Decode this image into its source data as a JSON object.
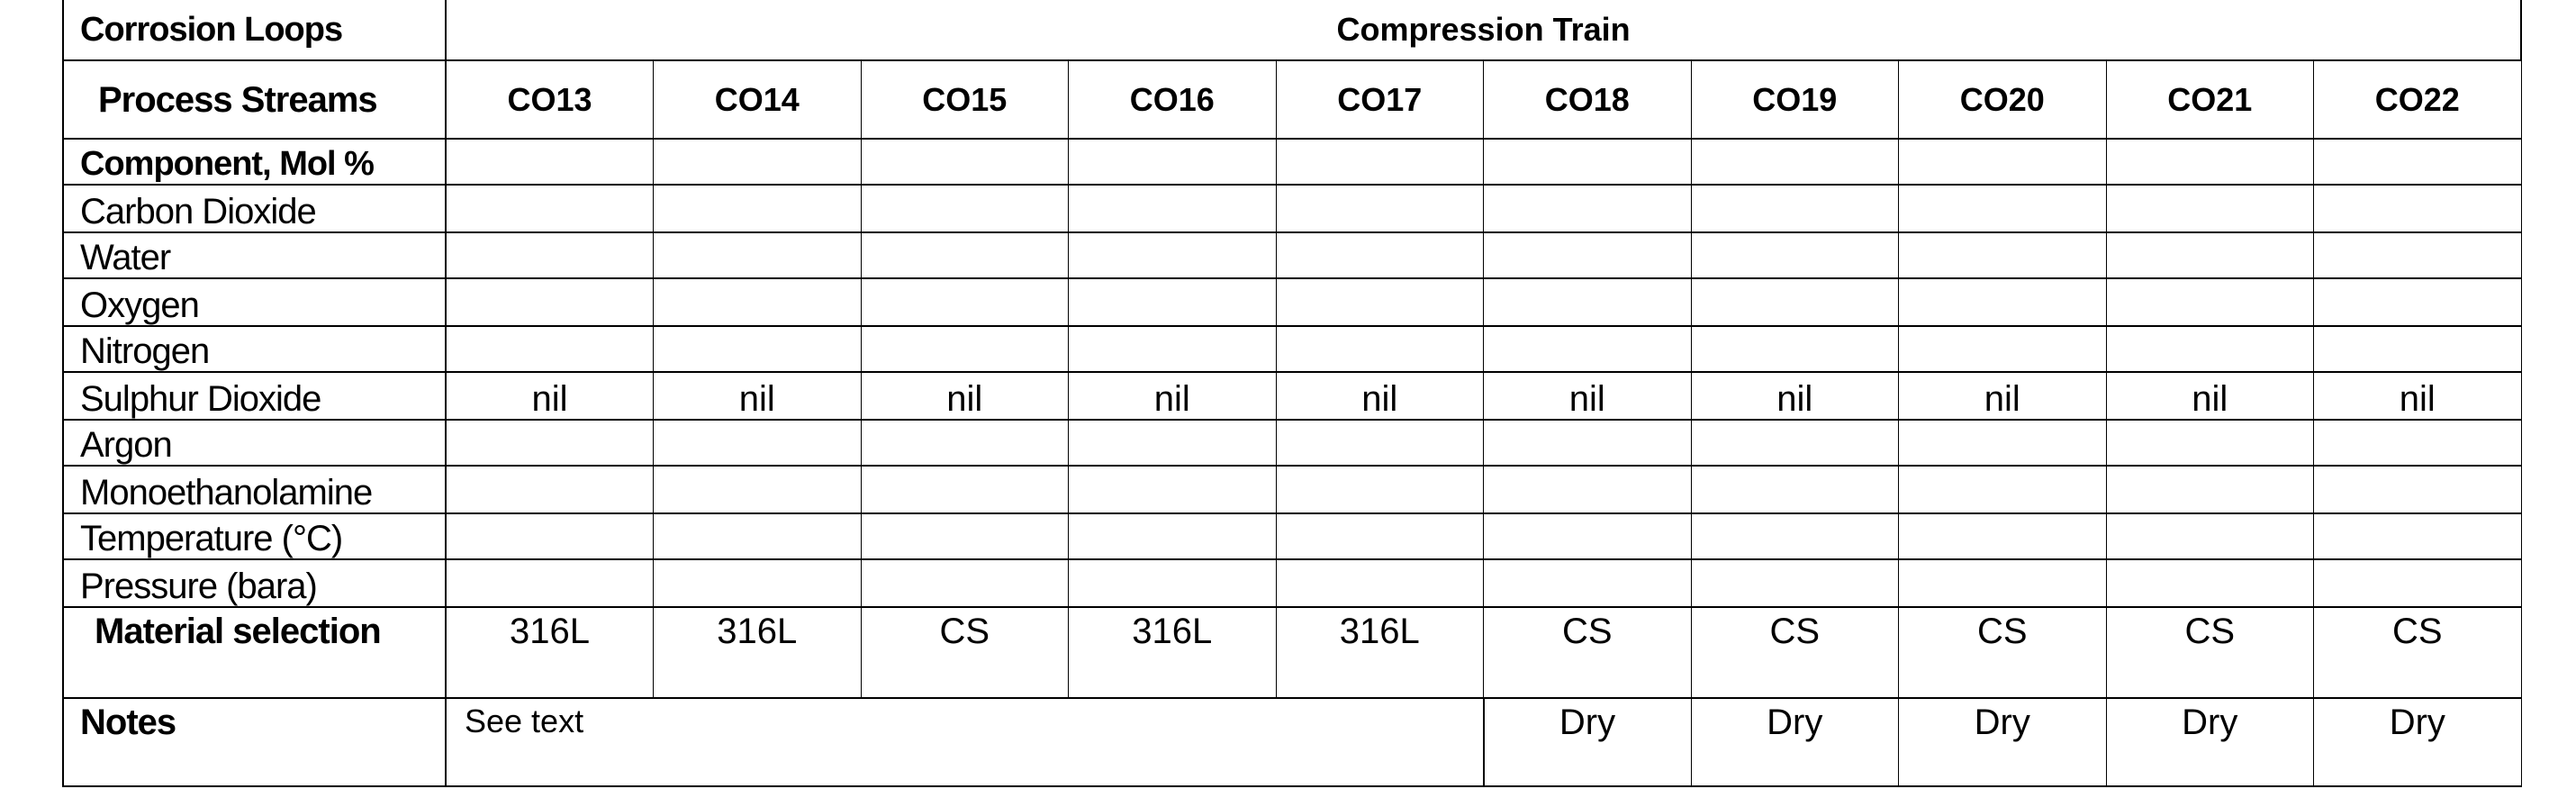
{
  "corrosion_loops_label": "Corrosion Loops",
  "group_header": "Compression Train",
  "process_streams_label": "Process Streams",
  "streams": [
    "CO13",
    "CO14",
    "CO15",
    "CO16",
    "CO17",
    "CO18",
    "CO19",
    "CO20",
    "CO21",
    "CO22"
  ],
  "rows": [
    {
      "label": "Component, Mol %",
      "bold": true,
      "values": [
        "",
        "",
        "",
        "",
        "",
        "",
        "",
        "",
        "",
        ""
      ]
    },
    {
      "label": "Carbon Dioxide",
      "bold": false,
      "values": [
        "",
        "",
        "",
        "",
        "",
        "",
        "",
        "",
        "",
        ""
      ]
    },
    {
      "label": "Water",
      "bold": false,
      "values": [
        "",
        "",
        "",
        "",
        "",
        "",
        "",
        "",
        "",
        ""
      ]
    },
    {
      "label": "Oxygen",
      "bold": false,
      "values": [
        "",
        "",
        "",
        "",
        "",
        "",
        "",
        "",
        "",
        ""
      ]
    },
    {
      "label": "Nitrogen",
      "bold": false,
      "values": [
        "",
        "",
        "",
        "",
        "",
        "",
        "",
        "",
        "",
        ""
      ]
    },
    {
      "label": "Sulphur Dioxide",
      "bold": false,
      "values": [
        "nil",
        "nil",
        "nil",
        "nil",
        "nil",
        "nil",
        "nil",
        "nil",
        "nil",
        "nil"
      ]
    },
    {
      "label": "Argon",
      "bold": false,
      "values": [
        "",
        "",
        "",
        "",
        "",
        "",
        "",
        "",
        "",
        ""
      ]
    },
    {
      "label": "Monoethanolamine",
      "bold": false,
      "values": [
        "",
        "",
        "",
        "",
        "",
        "",
        "",
        "",
        "",
        ""
      ]
    },
    {
      "label": "Temperature (°C)",
      "bold": false,
      "values": [
        "",
        "",
        "",
        "",
        "",
        "",
        "",
        "",
        "",
        ""
      ]
    },
    {
      "label": "Pressure (bara)",
      "bold": false,
      "values": [
        "",
        "",
        "",
        "",
        "",
        "",
        "",
        "",
        "",
        ""
      ]
    }
  ],
  "material_selection": {
    "label": "Material selection",
    "values": [
      "316L",
      "316L",
      "CS",
      "316L",
      "316L",
      "CS",
      "CS",
      "CS",
      "CS",
      "CS"
    ]
  },
  "notes": {
    "label": "Notes",
    "merged_text": "See text",
    "values": [
      "Dry",
      "Dry",
      "Dry",
      "Dry",
      "Dry"
    ]
  }
}
